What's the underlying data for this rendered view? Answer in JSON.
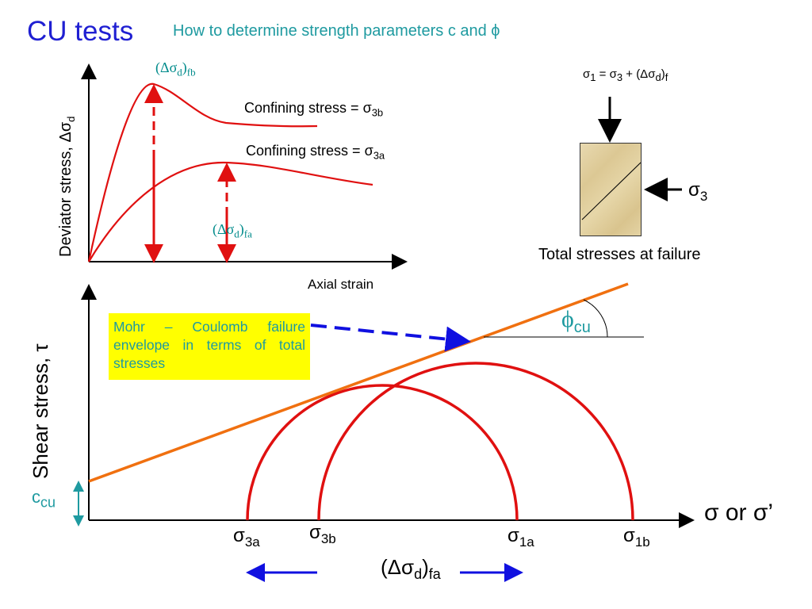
{
  "title": "CU tests",
  "subtitle": "How to determine strength parameters c and ϕ",
  "upper_chart": {
    "ylabel_text": "Deviator stress, Δσ",
    "ylabel_sub": "d",
    "xlabel": "Axial strain",
    "curve_b_label": "Confining stress = σ",
    "curve_b_sub": "3b",
    "curve_a_label": "Confining stress = σ",
    "curve_a_sub": "3a",
    "peak_b_label": "(Δσ",
    "peak_b_sub1": "d",
    "peak_b_close": ")",
    "peak_b_sub2": "fb",
    "peak_a_label": "(Δσ",
    "peak_a_sub1": "d",
    "peak_a_close": ")",
    "peak_a_sub2": "fa"
  },
  "sample": {
    "equation_main": "σ",
    "equation_sub1": "1",
    "equation_mid": " = σ",
    "equation_sub2": "3",
    "equation_rest": " + (Δσ",
    "equation_sub3": "d",
    "equation_close": ")",
    "equation_sub4": "f",
    "sigma3_label": "σ",
    "sigma3_sub": "3",
    "caption": "Total stresses at failure"
  },
  "lower_chart": {
    "ylabel": "Shear stress, τ",
    "xlabel": "σ or σ’",
    "note": "Mohr – Coulomb failure envelope in terms of total stresses",
    "phi_label": "ϕ",
    "phi_sub": "cu",
    "c_label": "c",
    "c_sub": "cu",
    "sigma3a": "σ",
    "sigma3a_sub": "3a",
    "sigma3b": "σ",
    "sigma3b_sub": "3b",
    "sigma1a": "σ",
    "sigma1a_sub": "1a",
    "sigma1b": "σ",
    "sigma1b_sub": "1b",
    "delta_label": "(Δσ",
    "delta_sub1": "d",
    "delta_close": ")",
    "delta_sub2": "fa"
  },
  "colors": {
    "curve_red": "#e01010",
    "envelope_orange": "#f07010",
    "arrow_blue": "#1010e0",
    "teal": "#1e9aa0",
    "note_bg": "#ffff00"
  }
}
